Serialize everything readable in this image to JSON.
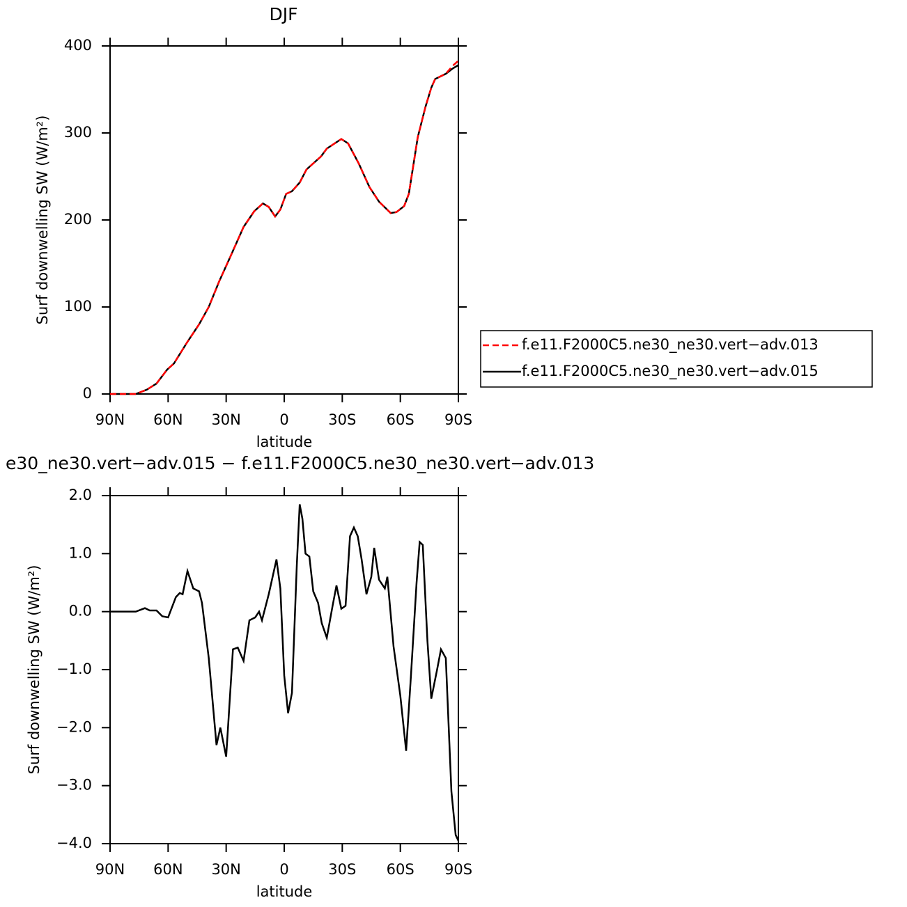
{
  "chart_data": [
    {
      "type": "line",
      "title": "DJF",
      "xlabel": "latitude",
      "ylabel": "Surf downwelling SW (W/m²)",
      "x": [
        90,
        76.7,
        71,
        66,
        60.5,
        57,
        50,
        44,
        39,
        33.5,
        28,
        21,
        15.5,
        11,
        8,
        4.7,
        2,
        -1,
        -4,
        -8,
        -11.5,
        -19,
        -22,
        -29.5,
        -33,
        -38.5,
        -44,
        -49,
        -55,
        -58,
        -62,
        -64.4,
        -69,
        -73,
        -76,
        -78,
        -83.5,
        -87,
        -90
      ],
      "series": [
        {
          "name": "f.e11.F2000C5.ne30_ne30.vert−adv.013",
          "color": "#ff0000",
          "line_style": "dashed",
          "values": [
            0,
            0,
            5,
            12,
            28,
            35,
            60,
            80,
            100,
            130,
            157,
            192,
            210,
            219,
            215,
            204,
            212,
            230,
            233,
            243,
            258,
            273,
            282,
            293,
            288,
            265,
            238,
            221,
            208,
            209,
            216,
            230,
            295,
            330,
            352,
            362,
            368,
            377,
            383
          ]
        },
        {
          "name": "f.e11.F2000C5.ne30_ne30.vert−adv.015",
          "color": "#000000",
          "line_style": "solid",
          "values": [
            0,
            0,
            5,
            12,
            28,
            35,
            60,
            80,
            100,
            130,
            157,
            192,
            210,
            219,
            215,
            204,
            212,
            230,
            233,
            243,
            258,
            273,
            282,
            293,
            288,
            265,
            238,
            221,
            208,
            209,
            216,
            230,
            295,
            330,
            352,
            362,
            368,
            374,
            378
          ]
        }
      ],
      "xlim": [
        90,
        -90
      ],
      "xticks": [
        {
          "value": 90,
          "label": "90N"
        },
        {
          "value": 60,
          "label": "60N"
        },
        {
          "value": 30,
          "label": "30N"
        },
        0,
        {
          "value": -30,
          "label": "30S"
        },
        {
          "value": -60,
          "label": "60S"
        },
        {
          "value": -90,
          "label": "90S"
        }
      ],
      "ylim": [
        0,
        400
      ],
      "yticks": [
        0,
        100,
        200,
        300,
        400
      ],
      "legend": "right"
    },
    {
      "type": "line",
      "title": "e30_ne30.vert−adv.015 − f.e11.F2000C5.ne30_ne30.vert−adv.013",
      "xlabel": "latitude",
      "ylabel": "Surf downwelling SW (W/m²)",
      "x": [
        90,
        76.7,
        72,
        69.5,
        66,
        63,
        60,
        56,
        54,
        52.5,
        50,
        47,
        44,
        42.5,
        39,
        35,
        33,
        30,
        26.5,
        24,
        21,
        18,
        15,
        13,
        11.5,
        8,
        6,
        4,
        2,
        0,
        -2,
        -4,
        -6.5,
        -8,
        -9.4,
        -11,
        -13,
        -15,
        -17.5,
        -19.4,
        -22,
        -25,
        -27,
        -29.5,
        -31.7,
        -34,
        -36,
        -38,
        -40,
        -42.5,
        -45,
        -46.5,
        -49,
        -52,
        -53.3,
        -56.5,
        -60,
        -63,
        -65.5,
        -68.4,
        -70,
        -71.6,
        -74,
        -76,
        -79,
        -81,
        -83.5,
        -86.4,
        -88.6,
        -90
      ],
      "series": [
        {
          "color": "#000000",
          "line_style": "solid",
          "values": [
            0,
            0,
            0.06,
            0.02,
            0.02,
            -0.08,
            -0.1,
            0.25,
            0.32,
            0.3,
            0.7,
            0.4,
            0.35,
            0.15,
            -0.8,
            -2.3,
            -2.0,
            -2.5,
            -0.65,
            -0.62,
            -0.85,
            -0.15,
            -0.1,
            0.0,
            -0.15,
            0.3,
            0.6,
            0.9,
            0.4,
            -1.1,
            -1.75,
            -1.4,
            0.8,
            1.85,
            1.6,
            1.0,
            0.95,
            0.35,
            0.15,
            -0.2,
            -0.45,
            0.1,
            0.45,
            0.05,
            0.1,
            1.3,
            1.45,
            1.3,
            0.9,
            0.3,
            0.6,
            1.1,
            0.55,
            0.4,
            0.6,
            -0.6,
            -1.45,
            -2.4,
            -1.1,
            0.5,
            1.2,
            1.15,
            -0.5,
            -1.5,
            -1.0,
            -0.65,
            -0.8,
            -3.1,
            -3.85,
            -3.95
          ]
        }
      ],
      "xlim": [
        90,
        -90
      ],
      "xticks": [
        {
          "value": 90,
          "label": "90N"
        },
        {
          "value": 60,
          "label": "60N"
        },
        {
          "value": 30,
          "label": "30N"
        },
        0,
        {
          "value": -30,
          "label": "30S"
        },
        {
          "value": -60,
          "label": "60S"
        },
        {
          "value": -90,
          "label": "90S"
        }
      ],
      "ylim": [
        -4,
        2
      ],
      "yticks": [
        {
          "value": -4,
          "label": "−4.0"
        },
        {
          "value": -3,
          "label": "−3.0"
        },
        {
          "value": -2,
          "label": "−2.0"
        },
        {
          "value": -1,
          "label": "−1.0"
        },
        {
          "value": 0,
          "label": "0.0"
        },
        {
          "value": 1,
          "label": "1.0"
        },
        {
          "value": 2,
          "label": "2.0"
        }
      ]
    }
  ]
}
